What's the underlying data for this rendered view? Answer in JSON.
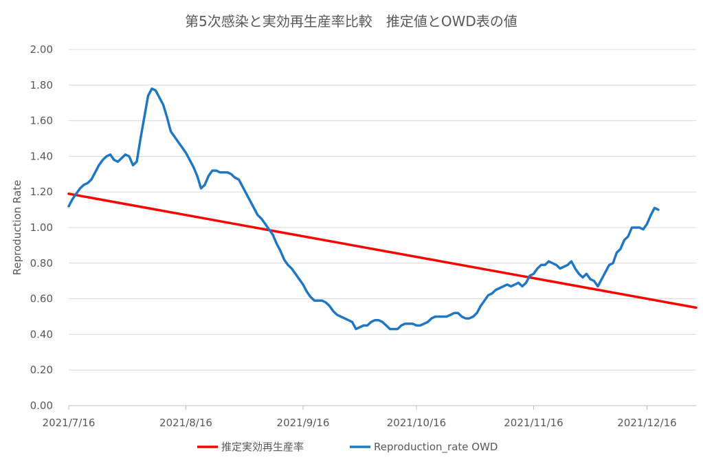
{
  "chart_data": {
    "type": "line",
    "title": "第5次感染と実効再生産率比較　推定値とOWD表の値",
    "xlabel": "",
    "ylabel": "Reproduction Rate",
    "ylim": [
      0,
      2.0
    ],
    "yticks": [
      0.0,
      0.2,
      0.4,
      0.6,
      0.8,
      1.0,
      1.2,
      1.4,
      1.6,
      1.8,
      2.0
    ],
    "ytick_labels": [
      "0.00",
      "0.20",
      "0.40",
      "0.60",
      "0.80",
      "1.00",
      "1.20",
      "1.40",
      "1.60",
      "1.80",
      "2.00"
    ],
    "x_range_days": [
      0,
      166
    ],
    "x_ticks": [
      {
        "day": 0,
        "label": "2021/7/16"
      },
      {
        "day": 31,
        "label": "2021/8/16"
      },
      {
        "day": 62,
        "label": "2021/9/16"
      },
      {
        "day": 92,
        "label": "2021/10/16"
      },
      {
        "day": 123,
        "label": "2021/11/16"
      },
      {
        "day": 153,
        "label": "2021/12/16"
      }
    ],
    "gridlines": true,
    "legend_position": "bottom",
    "series": [
      {
        "name": "推定実効再生産率",
        "color": "#ff0000",
        "points": [
          [
            0,
            1.19
          ],
          [
            166,
            0.55
          ]
        ]
      },
      {
        "name": "Reproduction_rate OWD",
        "color": "#1f77c4",
        "points": [
          [
            0,
            1.12
          ],
          [
            1,
            1.16
          ],
          [
            2,
            1.19
          ],
          [
            3,
            1.22
          ],
          [
            4,
            1.24
          ],
          [
            5,
            1.25
          ],
          [
            6,
            1.27
          ],
          [
            7,
            1.31
          ],
          [
            8,
            1.35
          ],
          [
            9,
            1.38
          ],
          [
            10,
            1.4
          ],
          [
            11,
            1.41
          ],
          [
            12,
            1.38
          ],
          [
            13,
            1.37
          ],
          [
            14,
            1.39
          ],
          [
            15,
            1.41
          ],
          [
            16,
            1.4
          ],
          [
            17,
            1.35
          ],
          [
            18,
            1.37
          ],
          [
            19,
            1.5
          ],
          [
            20,
            1.62
          ],
          [
            21,
            1.74
          ],
          [
            22,
            1.78
          ],
          [
            23,
            1.77
          ],
          [
            24,
            1.73
          ],
          [
            25,
            1.69
          ],
          [
            26,
            1.62
          ],
          [
            27,
            1.54
          ],
          [
            28,
            1.51
          ],
          [
            29,
            1.48
          ],
          [
            30,
            1.45
          ],
          [
            31,
            1.42
          ],
          [
            32,
            1.38
          ],
          [
            33,
            1.34
          ],
          [
            34,
            1.29
          ],
          [
            35,
            1.22
          ],
          [
            36,
            1.24
          ],
          [
            37,
            1.29
          ],
          [
            38,
            1.32
          ],
          [
            39,
            1.32
          ],
          [
            40,
            1.31
          ],
          [
            41,
            1.31
          ],
          [
            42,
            1.31
          ],
          [
            43,
            1.3
          ],
          [
            44,
            1.28
          ],
          [
            45,
            1.27
          ],
          [
            46,
            1.23
          ],
          [
            47,
            1.19
          ],
          [
            48,
            1.15
          ],
          [
            49,
            1.11
          ],
          [
            50,
            1.07
          ],
          [
            51,
            1.05
          ],
          [
            52,
            1.02
          ],
          [
            53,
            0.99
          ],
          [
            54,
            0.96
          ],
          [
            55,
            0.91
          ],
          [
            56,
            0.87
          ],
          [
            57,
            0.82
          ],
          [
            58,
            0.79
          ],
          [
            59,
            0.77
          ],
          [
            60,
            0.74
          ],
          [
            61,
            0.71
          ],
          [
            62,
            0.68
          ],
          [
            63,
            0.64
          ],
          [
            64,
            0.61
          ],
          [
            65,
            0.59
          ],
          [
            66,
            0.59
          ],
          [
            67,
            0.59
          ],
          [
            68,
            0.58
          ],
          [
            69,
            0.56
          ],
          [
            70,
            0.53
          ],
          [
            71,
            0.51
          ],
          [
            72,
            0.5
          ],
          [
            73,
            0.49
          ],
          [
            74,
            0.48
          ],
          [
            75,
            0.47
          ],
          [
            76,
            0.43
          ],
          [
            77,
            0.44
          ],
          [
            78,
            0.45
          ],
          [
            79,
            0.45
          ],
          [
            80,
            0.47
          ],
          [
            81,
            0.48
          ],
          [
            82,
            0.48
          ],
          [
            83,
            0.47
          ],
          [
            84,
            0.45
          ],
          [
            85,
            0.43
          ],
          [
            86,
            0.43
          ],
          [
            87,
            0.43
          ],
          [
            88,
            0.45
          ],
          [
            89,
            0.46
          ],
          [
            90,
            0.46
          ],
          [
            91,
            0.46
          ],
          [
            92,
            0.45
          ],
          [
            93,
            0.45
          ],
          [
            94,
            0.46
          ],
          [
            95,
            0.47
          ],
          [
            96,
            0.49
          ],
          [
            97,
            0.5
          ],
          [
            98,
            0.5
          ],
          [
            99,
            0.5
          ],
          [
            100,
            0.5
          ],
          [
            101,
            0.51
          ],
          [
            102,
            0.52
          ],
          [
            103,
            0.52
          ],
          [
            104,
            0.5
          ],
          [
            105,
            0.49
          ],
          [
            106,
            0.49
          ],
          [
            107,
            0.5
          ],
          [
            108,
            0.52
          ],
          [
            109,
            0.56
          ],
          [
            110,
            0.59
          ],
          [
            111,
            0.62
          ],
          [
            112,
            0.63
          ],
          [
            113,
            0.65
          ],
          [
            114,
            0.66
          ],
          [
            115,
            0.67
          ],
          [
            116,
            0.68
          ],
          [
            117,
            0.67
          ],
          [
            118,
            0.68
          ],
          [
            119,
            0.69
          ],
          [
            120,
            0.67
          ],
          [
            121,
            0.69
          ],
          [
            122,
            0.73
          ],
          [
            123,
            0.74
          ],
          [
            124,
            0.77
          ],
          [
            125,
            0.79
          ],
          [
            126,
            0.79
          ],
          [
            127,
            0.81
          ],
          [
            128,
            0.8
          ],
          [
            129,
            0.79
          ],
          [
            130,
            0.77
          ],
          [
            131,
            0.78
          ],
          [
            132,
            0.79
          ],
          [
            133,
            0.81
          ],
          [
            134,
            0.77
          ],
          [
            135,
            0.74
          ],
          [
            136,
            0.72
          ],
          [
            137,
            0.74
          ],
          [
            138,
            0.71
          ],
          [
            139,
            0.7
          ],
          [
            140,
            0.67
          ],
          [
            141,
            0.71
          ],
          [
            142,
            0.75
          ],
          [
            143,
            0.79
          ],
          [
            144,
            0.8
          ],
          [
            145,
            0.86
          ],
          [
            146,
            0.88
          ],
          [
            147,
            0.93
          ],
          [
            148,
            0.95
          ],
          [
            149,
            1.0
          ],
          [
            150,
            1.0
          ],
          [
            151,
            1.0
          ],
          [
            152,
            0.99
          ],
          [
            153,
            1.02
          ],
          [
            154,
            1.07
          ],
          [
            155,
            1.11
          ],
          [
            156,
            1.1
          ]
        ]
      }
    ]
  }
}
